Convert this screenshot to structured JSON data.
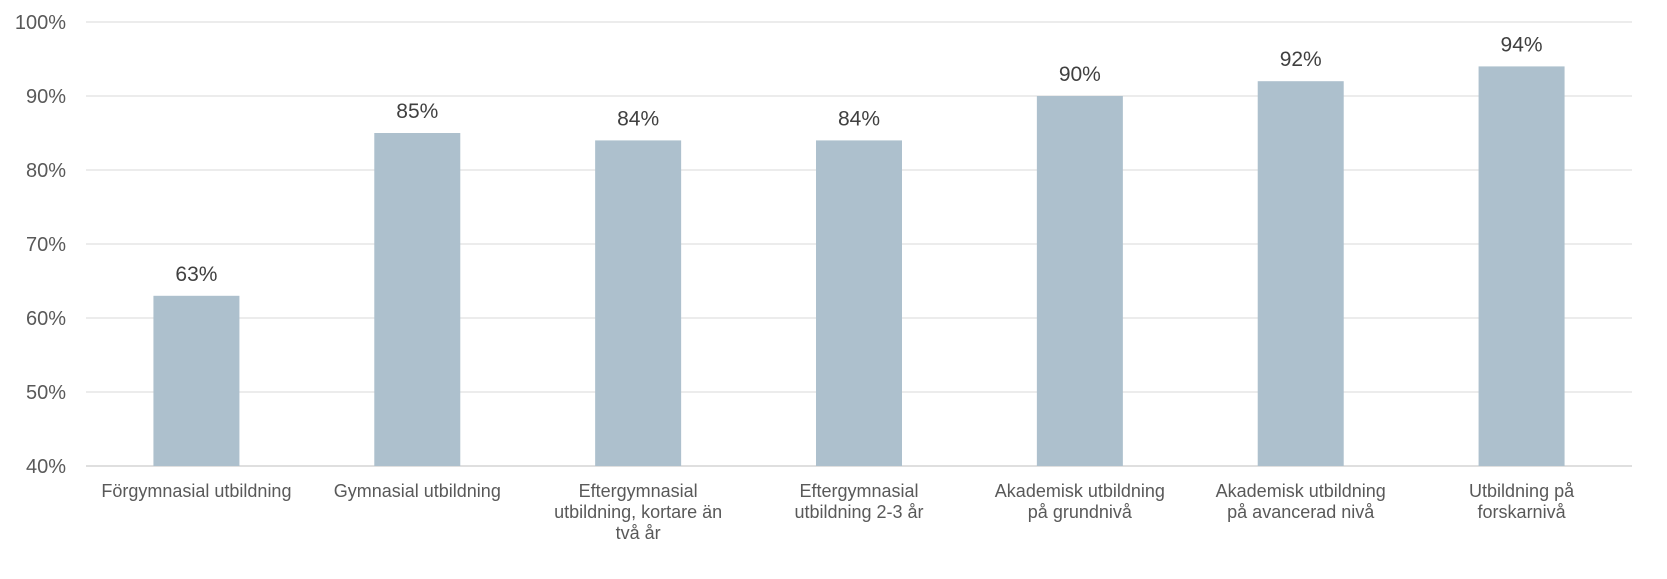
{
  "chart_data": {
    "type": "bar",
    "title": "",
    "xlabel": "",
    "ylabel": "",
    "categories": [
      [
        "Förgymnasial utbildning"
      ],
      [
        "Gymnasial utbildning"
      ],
      [
        "Eftergymnasial",
        "utbildning, kortare än",
        "två år"
      ],
      [
        "Eftergymnasial",
        "utbildning 2-3 år"
      ],
      [
        "Akademisk utbildning",
        "på grundnivå"
      ],
      [
        "Akademisk utbildning",
        "på avancerad nivå"
      ],
      [
        "Utbildning på",
        "forskarnivå"
      ]
    ],
    "values": [
      63,
      85,
      84,
      84,
      90,
      92,
      94
    ],
    "data_labels": [
      "63%",
      "85%",
      "84%",
      "84%",
      "90%",
      "92%",
      "94%"
    ],
    "ylim": [
      40,
      100
    ],
    "yticks": [
      40,
      50,
      60,
      70,
      80,
      90,
      100
    ],
    "ytick_labels": [
      "40%",
      "50%",
      "60%",
      "70%",
      "80%",
      "90%",
      "100%"
    ],
    "grid": true,
    "legend": "none",
    "colors": {
      "bar": "#adc0cd",
      "grid": "#d9d9d9",
      "text": "#595959"
    }
  }
}
